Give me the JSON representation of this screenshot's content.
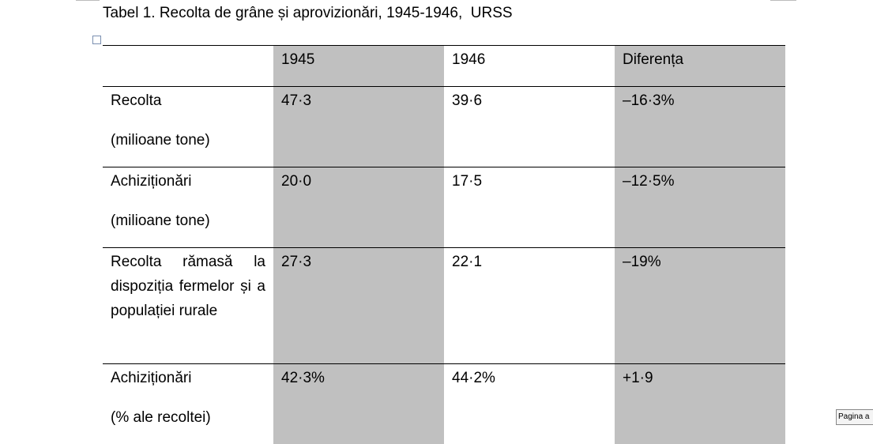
{
  "title": "Tabel 1. Recolta de grâne și aprovizionări, 1945-1946,  URSS",
  "table": {
    "header": [
      "",
      "1945",
      "1946",
      "Diferența"
    ],
    "rows": [
      [
        [
          "Recolta",
          "(milioane tone)"
        ],
        [
          "47·3"
        ],
        [
          "39·6"
        ],
        [
          "–16·3%"
        ]
      ],
      [
        [
          "Achiziționări",
          "(milioane tone)"
        ],
        [
          "20·0"
        ],
        [
          "17·5"
        ],
        [
          "–12·5%"
        ]
      ],
      [
        [
          "Recolta rămasă la dispoziția fermelor și a populației rurale"
        ],
        [
          "27·3"
        ],
        [
          "22·1"
        ],
        [
          "–19%"
        ]
      ],
      [
        [
          "Achiziționări",
          "(% ale recoltei)"
        ],
        [
          "42·3%"
        ],
        [
          "44·2%"
        ],
        [
          "+1·9"
        ]
      ]
    ]
  },
  "status_tooltip": "Pagina a"
}
